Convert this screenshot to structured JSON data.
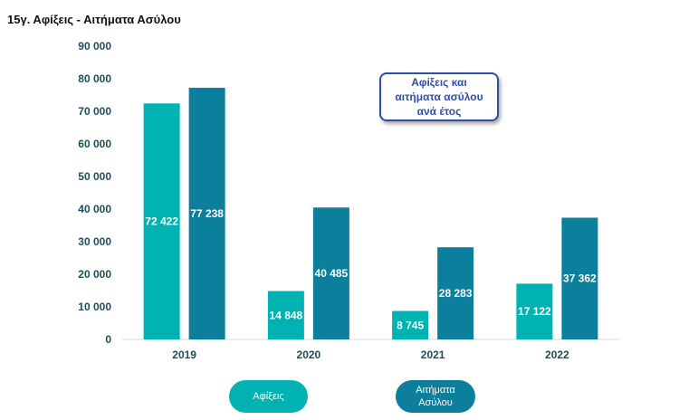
{
  "page": {
    "title": "15γ. Αφίξεις - Αιτήματα Ασύλου"
  },
  "callout": {
    "text": "Αφίξεις και αιτήματα ασύλου ανά έτος"
  },
  "colors": {
    "arrivals": "#00b2b2",
    "asylum": "#0b7f9c",
    "axis_text": "#1f4e57"
  },
  "chart_data": {
    "type": "bar",
    "categories": [
      "2019",
      "2020",
      "2021",
      "2022"
    ],
    "series": [
      {
        "name": "Αφίξεις",
        "values": [
          72422,
          14848,
          8745,
          17122
        ],
        "labels": [
          "72 422",
          "14 848",
          "8 745",
          "17 122"
        ]
      },
      {
        "name": "Αιτήματα Ασύλου",
        "values": [
          77238,
          40485,
          28283,
          37362
        ],
        "labels": [
          "77 238",
          "40 485",
          "28 283",
          "37 362"
        ]
      }
    ],
    "ylim": [
      0,
      90000
    ],
    "yticks": [
      "0",
      "10 000",
      "20 000",
      "30 000",
      "40 000",
      "50 000",
      "60 000",
      "70 000",
      "80 000",
      "90 000"
    ],
    "legend_position": "bottom",
    "grid": false
  }
}
